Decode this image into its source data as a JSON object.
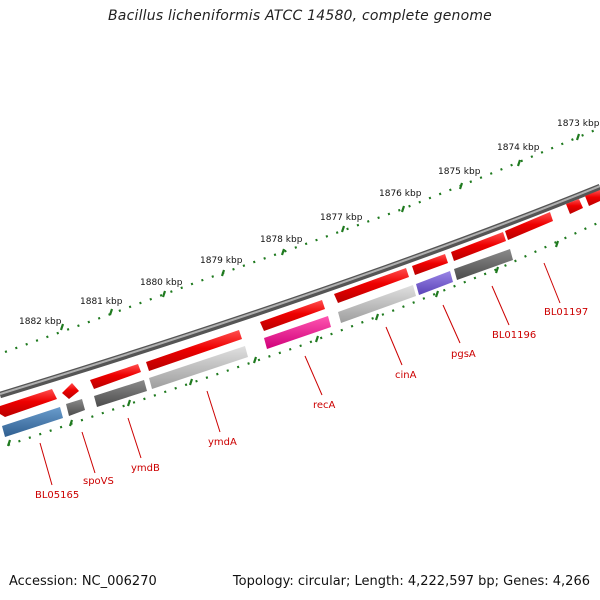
{
  "title": "Bacillus licheniformis ATCC 14580, complete genome",
  "footer": {
    "accession": "Accession: NC_006270",
    "summary": "Topology: circular; Length: 4,222,597 bp; Genes: 4,266"
  },
  "kbp_labels": [
    "1882 kbp",
    "1881 kbp",
    "1880 kbp",
    "1879 kbp",
    "1878 kbp",
    "1877 kbp",
    "1876 kbp",
    "1875 kbp",
    "1874 kbp",
    "1873 kbp"
  ],
  "gene_labels": [
    "BL05165",
    "spoVS",
    "ymdB",
    "ymdA",
    "recA",
    "cinA",
    "pgsA",
    "BL01196",
    "BL01197"
  ],
  "colors": {
    "forward_gene": "#ee1111",
    "backbone": "#7a7a7a",
    "tick": "#1f7a1f",
    "label": "#cc0000"
  }
}
